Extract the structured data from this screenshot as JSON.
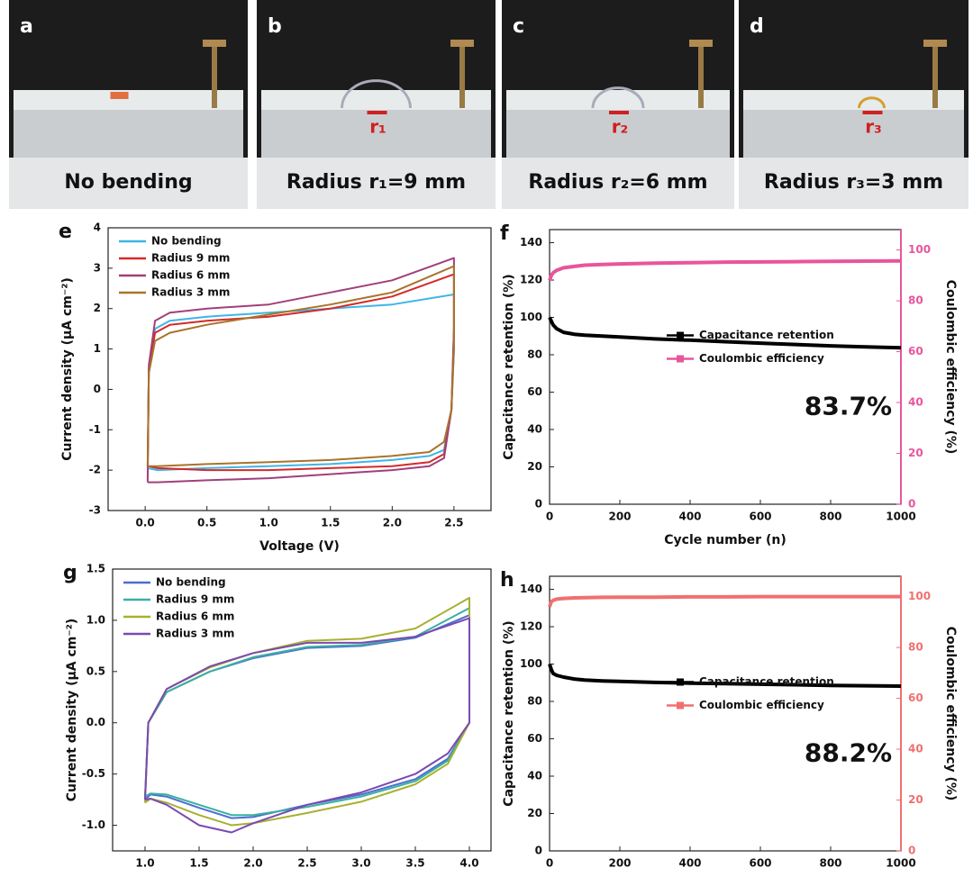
{
  "photos": [
    {
      "label": "a",
      "caption": "No bending"
    },
    {
      "label": "b",
      "caption": "Radius r₁=9 mm",
      "marker": "r₁"
    },
    {
      "label": "c",
      "caption": "Radius r₂=6 mm",
      "marker": "r₂"
    },
    {
      "label": "d",
      "caption": "Radius r₃=3 mm",
      "marker": "r₃"
    }
  ],
  "chart_data": [
    {
      "type": "line",
      "panel_label": "e",
      "xlabel": "Voltage (V)",
      "ylabel": "Current density (μA cm⁻²)",
      "xlim": [
        -0.3,
        2.8
      ],
      "xticks": [
        {
          "value": 0,
          "label": "0.0"
        },
        0.5,
        {
          "value": 1,
          "label": "1.0"
        },
        1.5,
        {
          "value": 2,
          "label": "2.0"
        },
        2.5
      ],
      "ylim": [
        -3,
        4
      ],
      "yticks": [
        -3,
        -2,
        -1,
        0,
        1,
        2,
        3,
        4
      ],
      "legend": "upper left",
      "series": [
        {
          "name": "No bending",
          "color": "#3fb5e8",
          "x": [
            0.02,
            0.03,
            0.08,
            0.2,
            0.5,
            1.0,
            1.5,
            2.0,
            2.5,
            2.5,
            2.48,
            2.42,
            2.3,
            2.0,
            1.5,
            1.0,
            0.5,
            0.1,
            0.02
          ],
          "values": [
            -1.95,
            0.5,
            1.5,
            1.7,
            1.8,
            1.9,
            2.0,
            2.1,
            2.35,
            1.0,
            -0.5,
            -1.5,
            -1.65,
            -1.75,
            -1.85,
            -1.9,
            -1.95,
            -2.0,
            -1.95
          ]
        },
        {
          "name": "Radius 9 mm",
          "color": "#d42a2a",
          "x": [
            0.02,
            0.03,
            0.08,
            0.2,
            0.5,
            1.0,
            1.5,
            2.0,
            2.5,
            2.5,
            2.48,
            2.42,
            2.3,
            2.0,
            1.5,
            1.0,
            0.5,
            0.1,
            0.02
          ],
          "values": [
            -1.9,
            0.5,
            1.4,
            1.6,
            1.7,
            1.8,
            2.0,
            2.3,
            2.85,
            1.5,
            -0.5,
            -1.6,
            -1.8,
            -1.9,
            -1.95,
            -2.0,
            -2.0,
            -1.95,
            -1.9
          ]
        },
        {
          "name": "Radius 6 mm",
          "color": "#a0407a",
          "x": [
            0.02,
            0.03,
            0.08,
            0.2,
            0.5,
            1.0,
            1.5,
            2.0,
            2.5,
            2.5,
            2.48,
            2.42,
            2.3,
            2.0,
            1.5,
            1.0,
            0.5,
            0.1,
            0.02
          ],
          "values": [
            -2.3,
            0.6,
            1.7,
            1.9,
            2.0,
            2.1,
            2.4,
            2.7,
            3.25,
            1.5,
            -0.5,
            -1.7,
            -1.9,
            -2.0,
            -2.1,
            -2.2,
            -2.25,
            -2.3,
            -2.3
          ]
        },
        {
          "name": "Radius 3 mm",
          "color": "#a8742a",
          "x": [
            0.02,
            0.03,
            0.08,
            0.2,
            0.5,
            1.0,
            1.5,
            2.0,
            2.5,
            2.5,
            2.48,
            2.42,
            2.3,
            2.0,
            1.5,
            1.0,
            0.5,
            0.1,
            0.02
          ],
          "values": [
            -1.9,
            0.4,
            1.2,
            1.4,
            1.6,
            1.85,
            2.1,
            2.4,
            3.05,
            1.0,
            -0.5,
            -1.3,
            -1.55,
            -1.65,
            -1.75,
            -1.8,
            -1.85,
            -1.9,
            -1.9
          ]
        }
      ]
    },
    {
      "type": "line",
      "panel_label": "f",
      "xlabel": "Cycle number (n)",
      "ylabel": "Capacitance retention (%)",
      "y2label": "Coulombic efficiency (%)",
      "x": [
        0,
        5,
        10,
        20,
        40,
        70,
        100,
        150,
        200,
        300,
        400,
        500,
        600,
        700,
        800,
        900,
        1000
      ],
      "xlim": [
        0,
        1000
      ],
      "xticks": [
        0,
        200,
        400,
        600,
        800,
        1000
      ],
      "ylim": [
        0,
        147
      ],
      "yticks": [
        0,
        20,
        40,
        60,
        80,
        100,
        120,
        140
      ],
      "y2lim": [
        0,
        108
      ],
      "y2ticks": [
        0,
        20,
        40,
        60,
        80,
        100
      ],
      "legend": "center right",
      "annotation": "83.7%",
      "series": [
        {
          "name": "Capacitance retention",
          "color": "#000000",
          "values": [
            100,
            98,
            96,
            94,
            92,
            91,
            90.5,
            90,
            89.5,
            88.5,
            87.8,
            87,
            86.2,
            85.5,
            84.8,
            84.2,
            83.7
          ]
        },
        {
          "name": "Coulombic efficiency",
          "color": "#e8559b",
          "axis": "y2",
          "values": [
            88,
            90,
            91,
            92,
            93,
            93.5,
            94,
            94.3,
            94.5,
            94.8,
            95,
            95.2,
            95.3,
            95.4,
            95.5,
            95.6,
            95.7
          ]
        }
      ]
    },
    {
      "type": "line",
      "panel_label": "g",
      "ylabel": "Current density (μA cm⁻²)",
      "xlim": [
        0.7,
        4.2
      ],
      "xticks": [
        {
          "value": 1,
          "label": "1.0"
        },
        1.5,
        {
          "value": 2,
          "label": "2.0"
        },
        2.5,
        {
          "value": 3,
          "label": "3.0"
        },
        3.5,
        {
          "value": 4,
          "label": "4.0"
        }
      ],
      "ylim": [
        -1.25,
        1.5
      ],
      "yticks": [
        {
          "value": -1,
          "label": "-1.0"
        },
        -0.5,
        {
          "value": 0,
          "label": "0.0"
        },
        0.5,
        {
          "value": 1,
          "label": "1.0"
        },
        1.5
      ],
      "legend": "upper left",
      "series": [
        {
          "name": "No bending",
          "color": "#4a6fd0",
          "x": [
            1.0,
            1.03,
            1.2,
            1.6,
            2.0,
            2.5,
            3.0,
            3.5,
            4.0,
            4.0,
            3.8,
            3.5,
            3.0,
            2.5,
            2.0,
            1.8,
            1.5,
            1.2,
            1.05,
            1.0
          ],
          "values": [
            -0.75,
            0.0,
            0.3,
            0.5,
            0.63,
            0.73,
            0.75,
            0.83,
            1.05,
            0.0,
            -0.35,
            -0.55,
            -0.7,
            -0.8,
            -0.92,
            -0.93,
            -0.83,
            -0.72,
            -0.7,
            -0.75
          ]
        },
        {
          "name": "Radius 9 mm",
          "color": "#3ab0a0",
          "x": [
            1.0,
            1.03,
            1.2,
            1.6,
            2.0,
            2.5,
            3.0,
            3.5,
            4.0,
            4.0,
            3.8,
            3.5,
            3.0,
            2.5,
            2.0,
            1.8,
            1.5,
            1.2,
            1.05,
            1.0
          ],
          "values": [
            -0.72,
            0.0,
            0.3,
            0.5,
            0.64,
            0.74,
            0.76,
            0.84,
            1.12,
            0.0,
            -0.37,
            -0.57,
            -0.72,
            -0.82,
            -0.9,
            -0.9,
            -0.8,
            -0.7,
            -0.69,
            -0.72
          ]
        },
        {
          "name": "Radius 6 mm",
          "color": "#a8b030",
          "x": [
            1.0,
            1.03,
            1.2,
            1.6,
            2.0,
            2.5,
            3.0,
            3.5,
            4.0,
            4.0,
            3.8,
            3.5,
            3.0,
            2.5,
            2.0,
            1.8,
            1.5,
            1.2,
            1.05,
            1.0
          ],
          "values": [
            -0.78,
            0.0,
            0.33,
            0.54,
            0.68,
            0.8,
            0.82,
            0.92,
            1.22,
            0.0,
            -0.4,
            -0.6,
            -0.77,
            -0.88,
            -0.98,
            -1.0,
            -0.9,
            -0.78,
            -0.74,
            -0.78
          ]
        },
        {
          "name": "Radius 3 mm",
          "color": "#7a4ab0",
          "x": [
            1.0,
            1.03,
            1.2,
            1.6,
            2.0,
            2.5,
            3.0,
            3.5,
            4.0,
            4.0,
            3.8,
            3.5,
            3.0,
            2.5,
            2.0,
            1.8,
            1.5,
            1.2,
            1.05,
            1.0
          ],
          "values": [
            -0.75,
            0.0,
            0.33,
            0.55,
            0.68,
            0.78,
            0.78,
            0.84,
            1.02,
            0.0,
            -0.3,
            -0.5,
            -0.68,
            -0.8,
            -0.98,
            -1.07,
            -1.0,
            -0.8,
            -0.74,
            -0.75
          ]
        }
      ]
    },
    {
      "type": "line",
      "panel_label": "h",
      "ylabel": "Capacitance retention (%)",
      "y2label": "Coulombic efficiency (%)",
      "x": [
        0,
        5,
        10,
        20,
        40,
        70,
        100,
        150,
        200,
        300,
        400,
        500,
        600,
        700,
        800,
        900,
        1000
      ],
      "xlim": [
        0,
        1000
      ],
      "xticks": [
        0,
        200,
        400,
        600,
        800,
        1000
      ],
      "ylim": [
        0,
        147
      ],
      "yticks": [
        0,
        20,
        40,
        60,
        80,
        100,
        120,
        140
      ],
      "y2lim": [
        0,
        108
      ],
      "y2ticks": [
        0,
        20,
        40,
        60,
        80,
        100
      ],
      "legend": "center right",
      "annotation": "88.2%",
      "series": [
        {
          "name": "Capacitance retention",
          "color": "#000000",
          "values": [
            100,
            97,
            95,
            94,
            93,
            92,
            91.5,
            91,
            90.7,
            90.2,
            89.8,
            89.5,
            89.2,
            88.9,
            88.6,
            88.4,
            88.2
          ]
        },
        {
          "name": "Coulombic efficiency",
          "color": "#f07070",
          "axis": "y2",
          "values": [
            96,
            98,
            98.5,
            99,
            99.3,
            99.5,
            99.6,
            99.7,
            99.8,
            99.8,
            99.9,
            99.9,
            100,
            100,
            100,
            100,
            100
          ]
        }
      ]
    }
  ]
}
